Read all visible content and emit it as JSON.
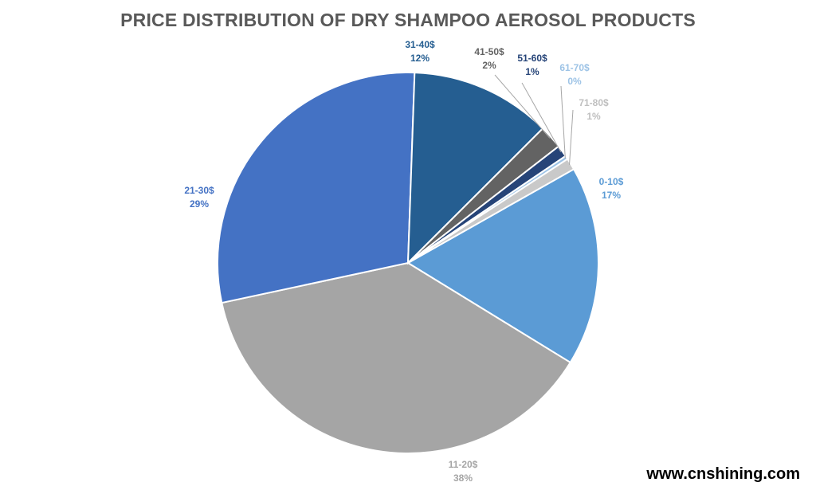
{
  "chart_data": {
    "type": "pie",
    "title": "PRICE DISTRIBUTION OF DRY SHAMPOO AEROSOL PRODUCTS",
    "slices": [
      {
        "category": "0-10$",
        "value": 17,
        "label_pct": "17%",
        "color": "#5B9BD5",
        "label_color": "#5B9BD5"
      },
      {
        "category": "11-20$",
        "value": 38,
        "label_pct": "38%",
        "color": "#A5A5A5",
        "label_color": "#A5A5A5"
      },
      {
        "category": "21-30$",
        "value": 29,
        "label_pct": "29%",
        "color": "#4472C4",
        "label_color": "#4472C4"
      },
      {
        "category": "31-40$",
        "value": 12,
        "label_pct": "12%",
        "color": "#255E91",
        "label_color": "#255E91"
      },
      {
        "category": "41-50$",
        "value": 2,
        "label_pct": "2%",
        "color": "#636363",
        "label_color": "#636363"
      },
      {
        "category": "51-60$",
        "value": 1,
        "label_pct": "1%",
        "color": "#264478",
        "label_color": "#264478"
      },
      {
        "category": "61-70$",
        "value": 0.3,
        "label_pct": "0%",
        "color": "#9DC3E6",
        "label_color": "#9DC3E6"
      },
      {
        "category": "71-80$",
        "value": 1,
        "label_pct": "1%",
        "color": "#C9C9C9",
        "label_color": "#BFBFBF"
      }
    ]
  },
  "watermark": "www.cnshining.com"
}
